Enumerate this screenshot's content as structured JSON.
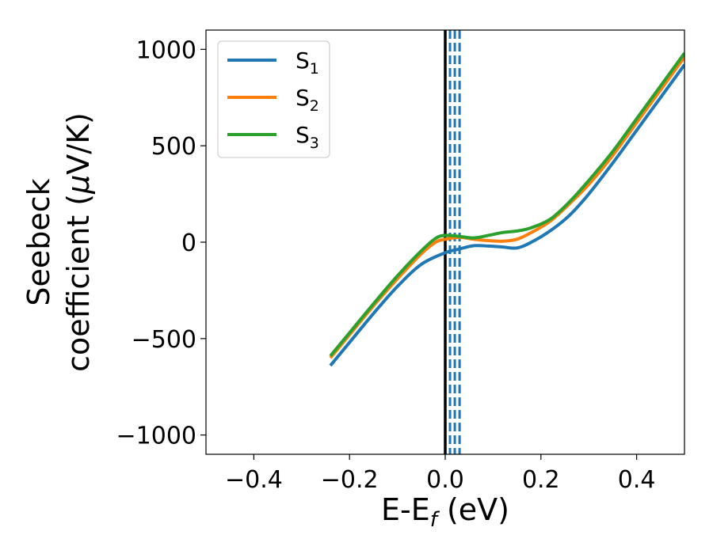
{
  "chart_data": {
    "type": "line",
    "xlabel": {
      "main": "E-E",
      "sub": "f",
      "rest": " (eV)"
    },
    "ylabel": {
      "line1": "Seebeck",
      "line2_pre": "coefficient  (",
      "mu": "μ",
      "line2_post": "V/K)"
    },
    "xlim": [
      -0.5,
      0.5
    ],
    "ylim": [
      -1100,
      1100
    ],
    "xticks": [
      -0.4,
      -0.2,
      0.0,
      0.2,
      0.4
    ],
    "xtick_labels": [
      "−0.4",
      "−0.2",
      "0.0",
      "0.2",
      "0.4"
    ],
    "yticks": [
      -1000,
      -500,
      0,
      500,
      1000
    ],
    "ytick_labels": [
      "−1000",
      "−500",
      "0",
      "500",
      "1000"
    ],
    "grid": false,
    "legend_position": "upper-left",
    "vline_solid": {
      "x": 0.0,
      "color": "#000000"
    },
    "vlines_dashed": {
      "x": [
        0.01,
        0.02,
        0.03
      ],
      "color": "#1f77b4"
    },
    "series": [
      {
        "name": "S",
        "sub": "1",
        "color": "#1f77b4",
        "x": [
          -0.24,
          -0.2,
          -0.15,
          -0.1,
          -0.05,
          0.0,
          0.03,
          0.06,
          0.09,
          0.12,
          0.15,
          0.18,
          0.22,
          0.26,
          0.3,
          0.35,
          0.4,
          0.45,
          0.5
        ],
        "y": [
          -640,
          -520,
          -370,
          -230,
          -115,
          -55,
          -35,
          -18,
          -20,
          -25,
          -30,
          0,
          60,
          140,
          250,
          410,
          580,
          750,
          920
        ]
      },
      {
        "name": "S",
        "sub": "2",
        "color": "#ff7f0e",
        "x": [
          -0.24,
          -0.2,
          -0.15,
          -0.1,
          -0.05,
          -0.02,
          0.0,
          0.03,
          0.06,
          0.09,
          0.12,
          0.15,
          0.18,
          0.22,
          0.26,
          0.3,
          0.35,
          0.4,
          0.45,
          0.5
        ],
        "y": [
          -600,
          -480,
          -330,
          -190,
          -60,
          0,
          15,
          25,
          15,
          8,
          5,
          15,
          50,
          110,
          200,
          300,
          450,
          620,
          790,
          960
        ]
      },
      {
        "name": "S",
        "sub": "3",
        "color": "#2ca02c",
        "x": [
          -0.24,
          -0.2,
          -0.15,
          -0.1,
          -0.05,
          -0.02,
          0.0,
          0.03,
          0.06,
          0.09,
          0.12,
          0.15,
          0.18,
          0.22,
          0.26,
          0.3,
          0.35,
          0.4,
          0.45,
          0.5
        ],
        "y": [
          -590,
          -470,
          -320,
          -175,
          -45,
          20,
          35,
          30,
          22,
          35,
          50,
          58,
          75,
          120,
          210,
          320,
          470,
          640,
          810,
          980
        ]
      }
    ]
  }
}
